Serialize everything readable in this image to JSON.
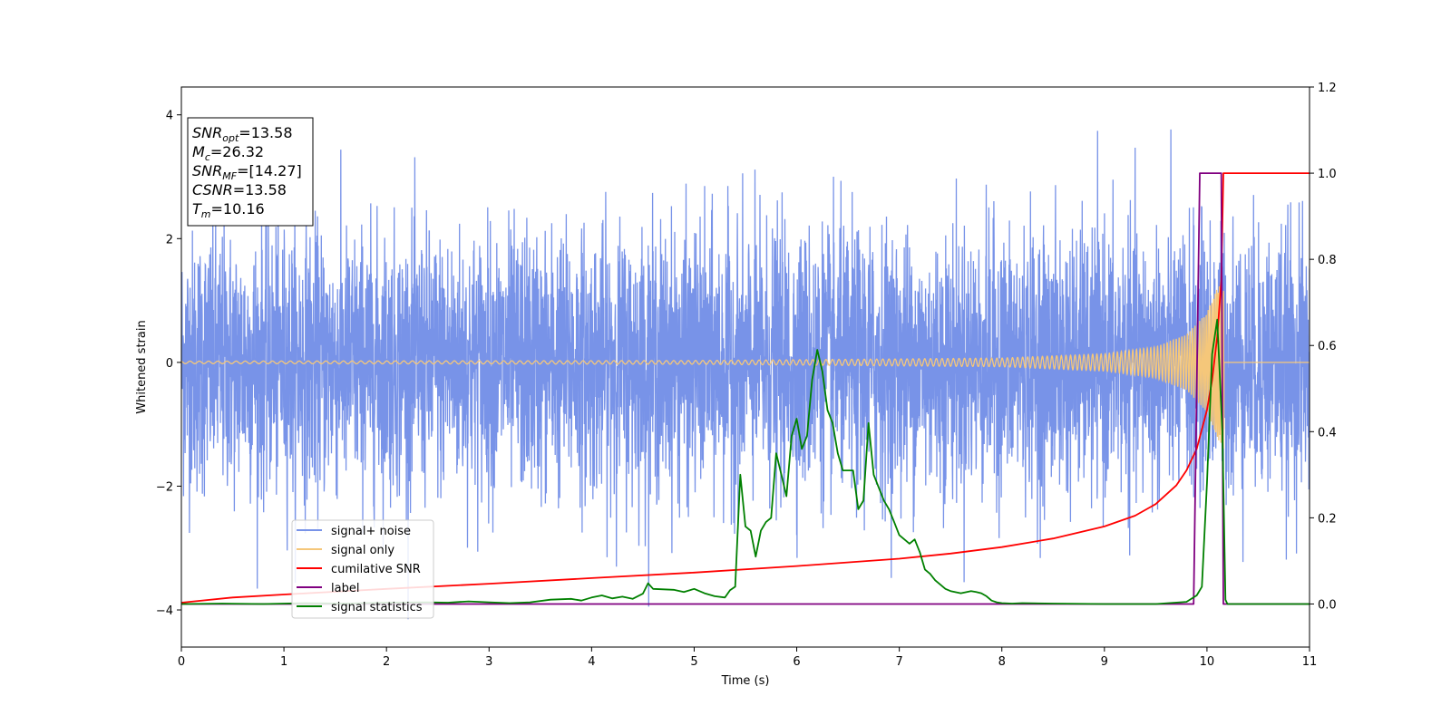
{
  "chart_data": {
    "type": "line",
    "xlabel": "Time (s)",
    "ylabel": "Whitened strain",
    "xlim": [
      0,
      11
    ],
    "ylim": [
      -4.6,
      4.45
    ],
    "y2lim": [
      -0.1,
      1.2
    ],
    "xticks": [
      "0",
      "1",
      "2",
      "3",
      "4",
      "5",
      "6",
      "7",
      "8",
      "9",
      "10",
      "11"
    ],
    "yticks": [
      "−4",
      "−2",
      "0",
      "2",
      "4"
    ],
    "y2ticks": [
      "0.0",
      "0.2",
      "0.4",
      "0.6",
      "0.8",
      "1.0",
      "1.2"
    ],
    "legend_position": "lower-left",
    "info_box": {
      "position": "top-left",
      "lines": [
        {
          "sym": "SNR",
          "sub": "opt",
          "val": "=13.58"
        },
        {
          "sym": "M",
          "sub": "c",
          "val": "=26.32"
        },
        {
          "sym": "SNR",
          "sub": "MF",
          "val": "=[14.27]"
        },
        {
          "sym": "CSNR",
          "sub": "",
          "val": "=13.58"
        },
        {
          "sym": "T",
          "sub": "m",
          "val": "=10.16"
        }
      ]
    },
    "series": [
      {
        "name": "signal+ noise",
        "axis": "left",
        "color": "#7893e8",
        "description_range": [
          -4.15,
          4.0
        ],
        "typical_std": 1.0
      },
      {
        "name": "signal only",
        "axis": "left",
        "color": "#f5c77a",
        "envelope": {
          "x": [
            0,
            5,
            8,
            9,
            9.5,
            9.8,
            10.0,
            10.1,
            10.16,
            10.18
          ],
          "amp": [
            0.02,
            0.03,
            0.07,
            0.14,
            0.25,
            0.45,
            0.8,
            1.2,
            1.45,
            0.0
          ]
        }
      },
      {
        "name": "cumilative SNR",
        "axis": "right",
        "color": "#ff0000",
        "x": [
          0,
          0.5,
          1,
          2,
          3,
          4,
          5,
          6,
          7,
          7.5,
          8,
          8.5,
          9,
          9.3,
          9.5,
          9.7,
          9.8,
          9.9,
          10.0,
          10.05,
          10.1,
          10.14,
          10.16,
          11
        ],
        "y": [
          0.003,
          0.015,
          0.022,
          0.035,
          0.047,
          0.06,
          0.073,
          0.088,
          0.105,
          0.117,
          0.132,
          0.152,
          0.18,
          0.205,
          0.232,
          0.275,
          0.31,
          0.36,
          0.45,
          0.52,
          0.62,
          0.75,
          1.0,
          1.0
        ]
      },
      {
        "name": "label",
        "axis": "right",
        "color": "#800080",
        "x": [
          0,
          9.87,
          9.93,
          10.14,
          10.16,
          11
        ],
        "y": [
          0.0,
          0.0,
          1.0,
          1.0,
          0.0,
          0.0
        ]
      },
      {
        "name": "signal statistics",
        "axis": "right",
        "color": "#008000",
        "x": [
          0,
          0.4,
          0.8,
          1.2,
          1.6,
          2.0,
          2.4,
          2.6,
          2.8,
          3.0,
          3.2,
          3.4,
          3.6,
          3.8,
          3.9,
          4.0,
          4.1,
          4.2,
          4.3,
          4.4,
          4.5,
          4.55,
          4.6,
          4.8,
          4.9,
          5.0,
          5.1,
          5.2,
          5.3,
          5.35,
          5.4,
          5.45,
          5.5,
          5.55,
          5.6,
          5.65,
          5.7,
          5.75,
          5.8,
          5.85,
          5.9,
          5.95,
          6.0,
          6.05,
          6.1,
          6.15,
          6.2,
          6.25,
          6.3,
          6.35,
          6.4,
          6.45,
          6.5,
          6.55,
          6.6,
          6.65,
          6.7,
          6.75,
          6.8,
          6.85,
          6.9,
          6.95,
          7.0,
          7.1,
          7.15,
          7.2,
          7.25,
          7.3,
          7.35,
          7.4,
          7.45,
          7.5,
          7.6,
          7.7,
          7.75,
          7.8,
          7.85,
          7.9,
          7.95,
          8.0,
          8.1,
          8.2,
          8.5,
          9.0,
          9.5,
          9.8,
          9.9,
          9.95,
          10.0,
          10.05,
          10.1,
          10.15,
          10.18,
          10.2,
          10.5,
          11
        ],
        "y": [
          0.0,
          0.001,
          0.0,
          0.002,
          0.001,
          0.003,
          0.004,
          0.003,
          0.006,
          0.004,
          0.002,
          0.004,
          0.01,
          0.012,
          0.008,
          0.015,
          0.02,
          0.013,
          0.017,
          0.012,
          0.024,
          0.048,
          0.035,
          0.033,
          0.028,
          0.035,
          0.025,
          0.018,
          0.015,
          0.032,
          0.04,
          0.3,
          0.18,
          0.17,
          0.11,
          0.17,
          0.19,
          0.2,
          0.35,
          0.3,
          0.25,
          0.39,
          0.43,
          0.36,
          0.39,
          0.52,
          0.59,
          0.54,
          0.45,
          0.42,
          0.35,
          0.31,
          0.31,
          0.31,
          0.22,
          0.24,
          0.42,
          0.3,
          0.27,
          0.24,
          0.22,
          0.19,
          0.16,
          0.14,
          0.15,
          0.12,
          0.08,
          0.07,
          0.055,
          0.045,
          0.035,
          0.03,
          0.025,
          0.03,
          0.028,
          0.025,
          0.018,
          0.008,
          0.004,
          0.002,
          0.001,
          0.002,
          0.001,
          0.0,
          0.0,
          0.005,
          0.02,
          0.04,
          0.28,
          0.58,
          0.66,
          0.4,
          0.01,
          0.0,
          0.0,
          0.0
        ]
      }
    ]
  }
}
